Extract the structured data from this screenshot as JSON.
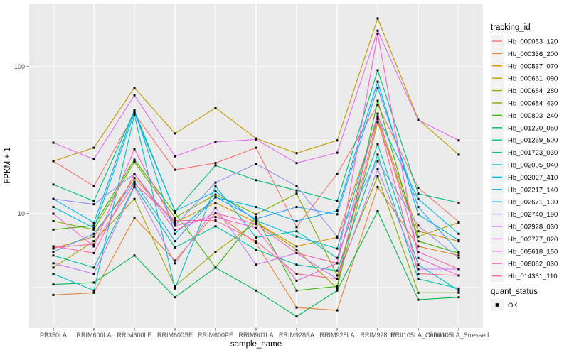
{
  "figure": {
    "bg": "#FFFFFF",
    "panel_bg": "#EBEBEB",
    "grid_major_color": "#FFFFFF",
    "grid_minor_color": "#FFFFFF",
    "tick_color": "#333333",
    "tick_label_color": "#4D4D4D",
    "point_color": "#000000",
    "legend_key_bg": "#F2F2F2"
  },
  "axes": {
    "x_title": "sample_name",
    "y_title": "FPKM + 1",
    "y_tick_labels": [
      "100",
      "10"
    ],
    "y_tick_values": [
      100,
      10
    ]
  },
  "legend": {
    "tracking_title": "tracking_id",
    "quant_title": "quant_status",
    "quant_label": "OK"
  },
  "chart_data": {
    "type": "line",
    "title": "",
    "xlabel": "sample_name",
    "ylabel": "FPKM + 1",
    "y_scale": "log10",
    "ylim": [
      1.7,
      269
    ],
    "y_major_gridlines": [
      10,
      100
    ],
    "y_minor_gridlines": [
      3.162,
      31.62
    ],
    "grid": true,
    "legend_position": "right",
    "point_marker": "small black square (quant_status = OK)",
    "categories": [
      "PB350LA",
      "RRIM600LA",
      "RRIM600LE",
      "RRIM600SE",
      "RRIM600PE",
      "RRIM901LA",
      "RRIM928BA",
      "RRIM928LA",
      "RRIM928LE",
      "RRII105LA_Control",
      "RRII105LA_Stressed"
    ],
    "series": [
      {
        "name": "Hb_000053_120",
        "color": "#F8766D",
        "values": [
          22.8,
          15.4,
          48.0,
          19.9,
          22.1,
          28.1,
          8.1,
          18.7,
          55.0,
          15.0,
          8.8
        ]
      },
      {
        "name": "Hb_000336_200",
        "color": "#EA8331",
        "values": [
          2.8,
          2.9,
          9.4,
          4.8,
          10.1,
          6.3,
          2.3,
          2.2,
          15.2,
          6.0,
          5.2
        ]
      },
      {
        "name": "Hb_000537_070",
        "color": "#D89000",
        "values": [
          5.8,
          7.0,
          17.5,
          8.7,
          11.9,
          8.7,
          6.0,
          6.9,
          44.0,
          7.6,
          6.5
        ]
      },
      {
        "name": "Hb_000661_090",
        "color": "#C09B00",
        "values": [
          22.8,
          28.1,
          72.0,
          35.2,
          52.5,
          32.5,
          25.8,
          31.5,
          213.0,
          43.9,
          25.2
        ]
      },
      {
        "name": "Hb_000684_280",
        "color": "#A3A500",
        "values": [
          4.3,
          6.5,
          12.6,
          3.2,
          5.5,
          8.7,
          5.7,
          3.1,
          42.0,
          7.0,
          8.7
        ]
      },
      {
        "name": "Hb_000684_430",
        "color": "#7CAE00",
        "values": [
          8.9,
          7.8,
          22.5,
          9.4,
          13.5,
          9.9,
          13.7,
          3.8,
          18.0,
          2.9,
          2.9
        ]
      },
      {
        "name": "Hb_000803_240",
        "color": "#39B600",
        "values": [
          7.8,
          8.3,
          23.3,
          10.1,
          4.3,
          9.5,
          3.0,
          3.2,
          58.6,
          6.5,
          5.4
        ]
      },
      {
        "name": "Hb_001220_050",
        "color": "#00BB4E",
        "values": [
          3.3,
          3.4,
          5.2,
          2.7,
          4.3,
          3.0,
          2.0,
          3.0,
          10.4,
          2.6,
          2.7
        ]
      },
      {
        "name": "Hb_001269_500",
        "color": "#00BF7D",
        "values": [
          15.8,
          12.2,
          50.0,
          10.4,
          21.3,
          16.9,
          14.4,
          12.2,
          94.6,
          13.7,
          11.9
        ]
      },
      {
        "name": "Hb_001723_030",
        "color": "#00C1A3",
        "values": [
          5.2,
          4.3,
          15.5,
          5.9,
          8.2,
          5.7,
          4.5,
          4.1,
          25.2,
          3.6,
          3.1
        ]
      },
      {
        "name": "Hb_002005_040",
        "color": "#00BFC4",
        "values": [
          3.9,
          3.0,
          47.0,
          3.1,
          15.4,
          6.9,
          7.6,
          5.0,
          29.7,
          4.5,
          3.0
        ]
      },
      {
        "name": "Hb_002027_410",
        "color": "#00BAE0",
        "values": [
          11.1,
          8.0,
          48.5,
          10.4,
          14.2,
          9.0,
          7.0,
          5.8,
          46.0,
          12.6,
          7.3
        ]
      },
      {
        "name": "Hb_002217_140",
        "color": "#00B0F6",
        "values": [
          12.6,
          8.7,
          51.0,
          7.3,
          12.9,
          11.1,
          8.9,
          10.5,
          79.0,
          9.9,
          6.6
        ]
      },
      {
        "name": "Hb_002671_130",
        "color": "#35A2FF",
        "values": [
          5.5,
          7.3,
          16.5,
          6.5,
          13.0,
          9.2,
          11.1,
          9.9,
          72.0,
          11.1,
          5.5
        ]
      },
      {
        "name": "Hb_002740_190",
        "color": "#9590FF",
        "values": [
          12.6,
          11.6,
          18.7,
          8.3,
          16.3,
          21.8,
          15.4,
          7.0,
          22.8,
          8.3,
          5.0
        ]
      },
      {
        "name": "Hb_002928_030",
        "color": "#C77CFF",
        "values": [
          4.6,
          3.9,
          15.2,
          4.6,
          11.0,
          4.5,
          5.4,
          3.6,
          20.1,
          4.2,
          4.2
        ]
      },
      {
        "name": "Hb_003777_020",
        "color": "#E76BF3",
        "values": [
          30.4,
          23.5,
          64.0,
          24.6,
          30.8,
          32.0,
          22.1,
          26.0,
          176.0,
          43.5,
          31.5
        ]
      },
      {
        "name": "Hb_005618_150",
        "color": "#FA62DB",
        "values": [
          10.0,
          6.0,
          27.5,
          8.3,
          9.5,
          8.0,
          3.5,
          4.6,
          168.0,
          5.0,
          3.8
        ]
      },
      {
        "name": "Hb_006062_030",
        "color": "#FF62BC",
        "values": [
          6.0,
          5.4,
          18.7,
          7.7,
          10.1,
          8.5,
          5.4,
          4.6,
          48.0,
          5.5,
          4.2
        ]
      },
      {
        "name": "Hb_014361_110",
        "color": "#FF6A98",
        "values": [
          5.9,
          6.2,
          16.0,
          9.0,
          9.0,
          6.5,
          3.9,
          3.6,
          44.5,
          3.9,
          3.8
        ]
      }
    ]
  }
}
